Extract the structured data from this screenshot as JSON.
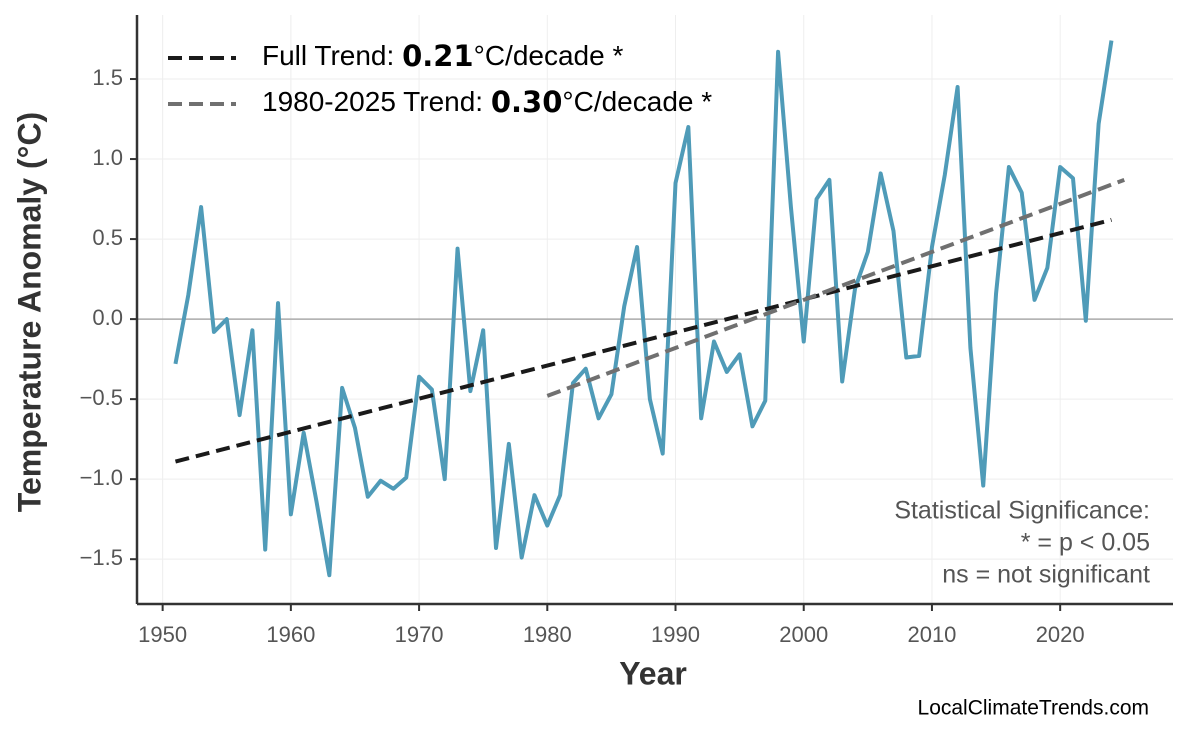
{
  "chart_data": {
    "type": "line",
    "x_label": "Year",
    "y_label": "Temperature Anomaly (°C)",
    "x": [
      1951,
      1952,
      1953,
      1954,
      1955,
      1956,
      1957,
      1958,
      1959,
      1960,
      1961,
      1962,
      1963,
      1964,
      1965,
      1966,
      1967,
      1968,
      1969,
      1970,
      1971,
      1972,
      1973,
      1974,
      1975,
      1976,
      1977,
      1978,
      1979,
      1980,
      1981,
      1982,
      1983,
      1984,
      1985,
      1986,
      1987,
      1988,
      1989,
      1990,
      1991,
      1992,
      1993,
      1994,
      1995,
      1996,
      1997,
      1998,
      1999,
      2000,
      2001,
      2002,
      2003,
      2004,
      2005,
      2006,
      2007,
      2008,
      2009,
      2010,
      2011,
      2012,
      2013,
      2014,
      2015,
      2016,
      2017,
      2018,
      2019,
      2020,
      2021,
      2022,
      2023,
      2024
    ],
    "series": [
      {
        "color": "#4f9bb8",
        "values": [
          -0.28,
          0.15,
          0.7,
          -0.08,
          0.0,
          -0.6,
          -0.07,
          -1.44,
          0.1,
          -1.22,
          -0.71,
          -1.14,
          -1.6,
          -0.43,
          -0.68,
          -1.11,
          -1.01,
          -1.06,
          -0.99,
          -0.36,
          -0.44,
          -1.0,
          0.44,
          -0.45,
          -0.07,
          -1.43,
          -0.78,
          -1.49,
          -1.1,
          -1.29,
          -1.1,
          -0.4,
          -0.31,
          -0.62,
          -0.47,
          0.08,
          0.45,
          -0.5,
          -0.84,
          0.85,
          1.2,
          -0.62,
          -0.14,
          -0.33,
          -0.22,
          -0.67,
          -0.51,
          1.67,
          0.7,
          -0.14,
          0.75,
          0.87,
          -0.39,
          0.19,
          0.42,
          0.91,
          0.55,
          -0.24,
          -0.23,
          0.45,
          0.9,
          1.45,
          -0.18,
          -1.04,
          0.16,
          0.95,
          0.79,
          0.12,
          0.32,
          0.95,
          0.88,
          -0.01,
          1.22,
          1.74
        ]
      }
    ],
    "trends": [
      {
        "name": "Full Trend: ",
        "slope": "0.21",
        "unit": "°C/decade *",
        "color": "#1a1a1a",
        "x": [
          1951,
          2024
        ],
        "values": [
          -0.89,
          0.62
        ]
      },
      {
        "name": "1980-2025 Trend: ",
        "slope": "0.30",
        "unit": "°C/decade *",
        "color": "#707070",
        "x": [
          1980,
          2025
        ],
        "values": [
          -0.48,
          0.87
        ]
      }
    ],
    "annotation": [
      "Statistical Significance:",
      "* = p < 0.05",
      "ns = not significant"
    ],
    "source": "LocalClimateTrends.com",
    "xlim": [
      1948,
      2028.8
    ],
    "ylim": [
      -1.78,
      1.9
    ],
    "xticks": [
      1950,
      1960,
      1970,
      1980,
      1990,
      2000,
      2010,
      2020
    ],
    "yticks": [
      {
        "value": -1.5,
        "label": "−1.5"
      },
      {
        "value": -1,
        "label": "−1.0"
      },
      {
        "value": -0.5,
        "label": "−0.5"
      },
      {
        "value": 0,
        "label": "0.0"
      },
      0.5,
      {
        "value": 1,
        "label": "1.0"
      },
      1.5
    ],
    "grid": true,
    "zero_line": true,
    "legend": "upper left"
  }
}
